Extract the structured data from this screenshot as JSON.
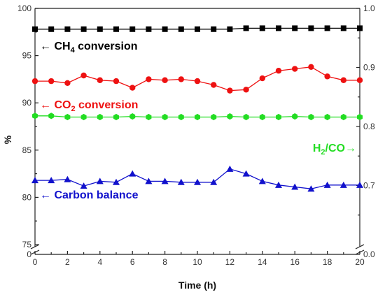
{
  "chart_data": {
    "type": "line",
    "title": "",
    "xlabel": "Time (h)",
    "ylabel": "%",
    "xlim": [
      0,
      20
    ],
    "ylim_left": [
      75,
      100
    ],
    "ylim_right": [
      0.6,
      1.0
    ],
    "x_ticks": [
      "0",
      "2",
      "4",
      "6",
      "8",
      "10",
      "12",
      "14",
      "16",
      "18",
      "20"
    ],
    "y_left_ticks": [
      "75",
      "80",
      "85",
      "90",
      "95",
      "100"
    ],
    "y_left_break_tick": "0",
    "y_right_ticks": [
      "0.7",
      "0.8",
      "0.9",
      "1.0"
    ],
    "y_right_break_tick": "0.0",
    "grid": false,
    "legend": "none",
    "x": [
      0,
      1,
      2,
      3,
      4,
      5,
      6,
      7,
      8,
      9,
      10,
      11,
      12,
      13,
      14,
      15,
      16,
      17,
      18,
      19,
      20
    ],
    "series": [
      {
        "key": "ch4",
        "marker": "square",
        "color": "#000000",
        "axis": "left",
        "label": {
          "prefix": "← CH",
          "sub": "4",
          "suffix": " conversion"
        },
        "values": [
          97.8,
          97.8,
          97.8,
          97.8,
          97.8,
          97.8,
          97.8,
          97.8,
          97.8,
          97.8,
          97.8,
          97.8,
          97.8,
          97.9,
          97.9,
          97.9,
          97.9,
          97.9,
          97.9,
          97.9,
          97.9
        ]
      },
      {
        "key": "co2",
        "marker": "circle",
        "color": "#ee1111",
        "axis": "left",
        "label": {
          "prefix": "← CO",
          "sub": "2",
          "suffix": " conversion"
        },
        "values": [
          92.3,
          92.3,
          92.1,
          92.9,
          92.4,
          92.3,
          91.6,
          92.5,
          92.4,
          92.5,
          92.3,
          91.9,
          91.3,
          91.4,
          92.6,
          93.4,
          93.6,
          93.8,
          92.8,
          92.4,
          92.4
        ]
      },
      {
        "key": "h2co",
        "marker": "hexagon",
        "color": "#22dd22",
        "axis": "right",
        "label": {
          "prefix": "H",
          "sub": "2",
          "suffix": "/CO→"
        },
        "values": [
          0.818,
          0.818,
          0.816,
          0.816,
          0.816,
          0.816,
          0.817,
          0.816,
          0.816,
          0.816,
          0.816,
          0.816,
          0.817,
          0.816,
          0.816,
          0.816,
          0.817,
          0.816,
          0.816,
          0.816,
          0.816
        ]
      },
      {
        "key": "carbon",
        "marker": "triangle",
        "color": "#1111cc",
        "axis": "left",
        "label": {
          "prefix": "← Carbon balance",
          "sub": "",
          "suffix": ""
        },
        "values": [
          81.8,
          81.8,
          81.9,
          81.2,
          81.7,
          81.6,
          82.5,
          81.7,
          81.7,
          81.6,
          81.6,
          81.6,
          83.0,
          82.5,
          81.7,
          81.3,
          81.1,
          80.9,
          81.3,
          81.3,
          81.3
        ]
      }
    ]
  }
}
